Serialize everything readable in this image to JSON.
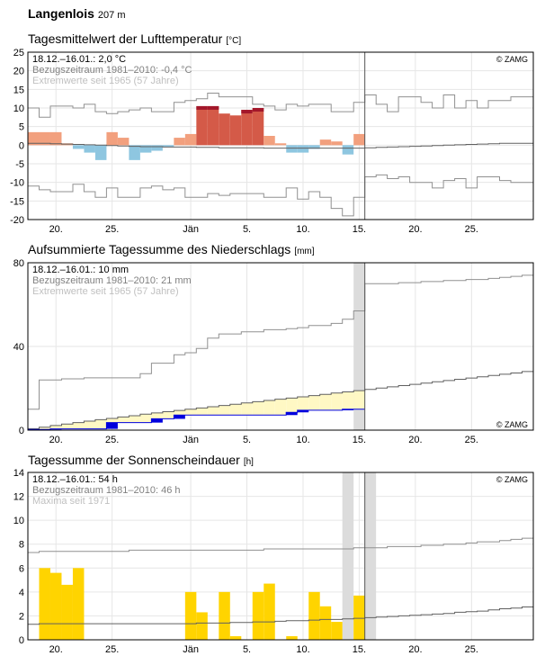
{
  "header": {
    "station": "Langenlois",
    "elevation": "207 m"
  },
  "colors": {
    "temp_above_normal": "#f2a07e",
    "temp_above_strong": "#d45a48",
    "temp_above_extreme": "#a3172b",
    "temp_below_normal": "#8ec6e0",
    "precip_accum_fill": "#fff8c4",
    "precip_daily": "#0000dd",
    "sun_bar": "#ffd400",
    "gap_band": "#dcdcdc",
    "normal_line": "#606060",
    "extreme_line": "#909090",
    "grid": "#e6e6e6"
  },
  "chart_data": [
    {
      "id": "temperature",
      "type": "bar",
      "title": "Tagesmittelwert der Lufttemperatur",
      "unit": "[°C]",
      "info": [
        "18.12.–16.01.: 2,0 °C",
        "Bezugszeitraum 1981–2010: -0,4 °C",
        "Extremwerte seit 1965 (57 Jahre)"
      ],
      "credit": "© ZAMG",
      "ylim": [
        -20,
        25
      ],
      "yticks": [
        "25",
        "20",
        "15",
        "10",
        "5",
        "0",
        "-5",
        "-10",
        "-15",
        "-20"
      ],
      "x_tick_labels": [
        "20.",
        "25.",
        "Jän",
        "5.",
        "10.",
        "15.",
        "20.",
        "25."
      ],
      "x_tick_days": [
        2,
        7,
        14,
        19,
        24,
        29,
        34,
        39
      ],
      "grid": true,
      "current_day_marker": 30,
      "days": [
        "18.12.",
        "19.12.",
        "20.12.",
        "21.12.",
        "22.12.",
        "23.12.",
        "24.12.",
        "25.12.",
        "26.12.",
        "27.12.",
        "28.12.",
        "29.12.",
        "30.12.",
        "31.12.",
        "01.01.",
        "02.01.",
        "03.01.",
        "04.01.",
        "05.01.",
        "06.01.",
        "07.01.",
        "08.01.",
        "09.01.",
        "10.01.",
        "11.01.",
        "12.01.",
        "13.01.",
        "14.01.",
        "15.01.",
        "16.01."
      ],
      "daily_mean": [
        3.5,
        3.5,
        3.5,
        0.5,
        -1.0,
        -2.0,
        -4.0,
        3.5,
        2.0,
        -4.0,
        -2.0,
        -1.5,
        -0.5,
        2.0,
        3.0,
        10.5,
        10.5,
        8.5,
        8.0,
        9.5,
        10.0,
        2.5,
        0.5,
        -2.0,
        -2.0,
        -1.0,
        1.5,
        1.0,
        -2.5,
        3.0
      ],
      "normal_mean": [
        0.5,
        0.5,
        0.4,
        0.3,
        0.2,
        0.1,
        0.0,
        -0.1,
        -0.2,
        -0.3,
        -0.4,
        -0.4,
        -0.5,
        -0.5,
        -0.5,
        -0.6,
        -0.6,
        -0.7,
        -0.7,
        -0.7,
        -0.7,
        -0.8,
        -0.8,
        -0.8,
        -0.8,
        -0.8,
        -0.8,
        -0.8,
        -0.8,
        -0.8,
        -0.7,
        -0.6,
        -0.5,
        -0.4,
        -0.3,
        -0.2,
        -0.1,
        0.0,
        0.1,
        0.2,
        0.3,
        0.4,
        0.5,
        0.5,
        0.5
      ],
      "extreme_max": [
        10.0,
        7.5,
        10.5,
        10.5,
        10.0,
        11.0,
        9.0,
        8.5,
        9.0,
        9.5,
        10.0,
        9.0,
        9.0,
        11.5,
        12.0,
        12.5,
        14.0,
        13.0,
        13.0,
        13.0,
        11.0,
        10.5,
        9.5,
        11.0,
        10.5,
        11.0,
        11.0,
        9.0,
        9.0,
        11.5,
        13.5,
        11.0,
        9.0,
        13.0,
        13.0,
        11.5,
        10.0,
        13.5,
        10.0,
        12.0,
        10.0,
        12.0,
        12.0,
        13.0,
        13.0
      ],
      "extreme_min": [
        -11.0,
        -12.0,
        -12.5,
        -12.5,
        -10.5,
        -12.5,
        -14.0,
        -11.5,
        -14.0,
        -14.0,
        -11.5,
        -11.0,
        -12.0,
        -11.5,
        -14.0,
        -14.0,
        -13.0,
        -13.5,
        -13.0,
        -13.0,
        -13.0,
        -14.0,
        -14.0,
        -11.5,
        -14.5,
        -12.5,
        -14.0,
        -17.0,
        -19.0,
        -14.0,
        -8.5,
        -8.0,
        -9.0,
        -8.5,
        -10.0,
        -10.0,
        -11.5,
        -9.5,
        -9.0,
        -11.5,
        -8.5,
        -8.5,
        -9.5,
        -10.0,
        -10.0
      ]
    },
    {
      "id": "precipitation",
      "type": "line",
      "title": "Aufsummierte Tagessumme des Niederschlags",
      "unit": "[mm]",
      "info": [
        "18.12.–16.01.: 10 mm",
        "Bezugszeitraum 1981–2010: 21 mm",
        "Extremwerte seit 1965 (57 Jahre)"
      ],
      "credit": "© ZAMG",
      "ylim": [
        0,
        80
      ],
      "yticks": [
        "80",
        "40",
        "0"
      ],
      "x_tick_labels": [
        "20.",
        "25.",
        "Jän",
        "5.",
        "10.",
        "15.",
        "20.",
        "25."
      ],
      "x_tick_days": [
        2,
        7,
        14,
        19,
        24,
        29,
        34,
        39
      ],
      "grid": true,
      "current_day_marker": 30,
      "missing_days": [
        29
      ],
      "observed_accum": [
        0.3,
        0.3,
        0.6,
        0.6,
        0.6,
        0.6,
        0.6,
        3.6,
        3.6,
        3.6,
        3.6,
        5.4,
        5.4,
        7.2,
        7.2,
        7.2,
        7.2,
        7.2,
        7.2,
        7.2,
        7.2,
        7.2,
        7.2,
        8.5,
        9.5,
        9.5,
        9.5,
        9.5,
        10.0,
        10.0
      ],
      "normal_accum": [
        0.7,
        1.4,
        2.2,
        2.9,
        3.6,
        4.3,
        5.0,
        5.6,
        6.3,
        6.9,
        7.6,
        8.2,
        8.8,
        9.4,
        10.0,
        10.6,
        11.2,
        11.8,
        12.4,
        13.0,
        13.6,
        14.2,
        14.8,
        15.3,
        15.9,
        16.5,
        17.1,
        17.7,
        18.3,
        18.9,
        19.5,
        20.1,
        20.7,
        21.3,
        21.9,
        22.5,
        23.1,
        23.7,
        24.3,
        24.9,
        25.5,
        26.1,
        26.7,
        27.3,
        28.0
      ],
      "extreme_max_accum": [
        10.0,
        24.0,
        24.0,
        24.5,
        24.5,
        25.0,
        25.0,
        25.0,
        25.0,
        25.0,
        27.0,
        32.0,
        32.0,
        36.0,
        37.0,
        39.0,
        44.0,
        46.0,
        46.0,
        47.0,
        47.0,
        48.0,
        48.0,
        48.5,
        49.0,
        50.0,
        50.0,
        51.0,
        53.0,
        57.0,
        70.0,
        70.0,
        70.0,
        70.5,
        70.5,
        71.0,
        71.0,
        71.5,
        71.5,
        72.0,
        72.0,
        72.5,
        73.0,
        73.5,
        74.0
      ],
      "extreme_min_accum": [
        0,
        0,
        0,
        0,
        0,
        0,
        0,
        0,
        0,
        0,
        0,
        0,
        0,
        0,
        0,
        0,
        0,
        0,
        0,
        0,
        0,
        0,
        0,
        0,
        0,
        0,
        0,
        0,
        0,
        0,
        0,
        0,
        0,
        0,
        0,
        0,
        0,
        0,
        0,
        0,
        0,
        0,
        0,
        0,
        0
      ]
    },
    {
      "id": "sunshine",
      "type": "bar",
      "title": "Tagessumme der Sonnenscheindauer",
      "unit": "[h]",
      "info": [
        "18.12.–16.01.: 54 h",
        "Bezugszeitraum 1981–2010: 46 h",
        "Maxima seit 1971"
      ],
      "credit": "© ZAMG",
      "ylim": [
        0,
        14
      ],
      "yticks": [
        "14",
        "12",
        "10",
        "8",
        "6",
        "4",
        "2",
        "0"
      ],
      "x_tick_labels": [
        "20.",
        "25.",
        "Jän",
        "5.",
        "10.",
        "15.",
        "20.",
        "25."
      ],
      "x_tick_days": [
        2,
        7,
        14,
        19,
        24,
        29,
        34,
        39
      ],
      "grid": true,
      "current_day_marker": 30,
      "missing_days": [
        28,
        30
      ],
      "daily_sunshine": [
        0,
        6.0,
        5.6,
        4.6,
        6.0,
        0,
        0,
        0,
        0,
        0,
        0,
        0,
        0,
        0,
        4.0,
        2.3,
        0,
        4.0,
        0.3,
        0,
        4.0,
        4.7,
        0,
        0.3,
        0,
        4.0,
        2.8,
        1.5,
        0,
        3.7
      ],
      "normal_daily": [
        1.3,
        1.35,
        1.35,
        1.35,
        1.35,
        1.35,
        1.35,
        1.35,
        1.35,
        1.35,
        1.35,
        1.35,
        1.35,
        1.35,
        1.35,
        1.4,
        1.4,
        1.4,
        1.45,
        1.45,
        1.5,
        1.5,
        1.55,
        1.6,
        1.6,
        1.65,
        1.7,
        1.7,
        1.75,
        1.8,
        1.85,
        1.9,
        1.95,
        2.0,
        2.05,
        2.1,
        2.15,
        2.2,
        2.3,
        2.35,
        2.4,
        2.5,
        2.6,
        2.65,
        2.75
      ],
      "max_daily": [
        7.3,
        7.4,
        7.4,
        7.4,
        7.4,
        7.4,
        7.4,
        7.4,
        7.4,
        7.5,
        7.5,
        7.5,
        7.5,
        7.5,
        7.5,
        7.5,
        7.5,
        7.5,
        7.5,
        7.5,
        7.5,
        7.6,
        7.6,
        7.6,
        7.6,
        7.6,
        7.6,
        7.6,
        7.6,
        7.7,
        7.7,
        7.7,
        7.8,
        7.8,
        7.8,
        7.9,
        7.9,
        8.0,
        8.0,
        8.1,
        8.2,
        8.2,
        8.3,
        8.4,
        8.5
      ]
    }
  ]
}
